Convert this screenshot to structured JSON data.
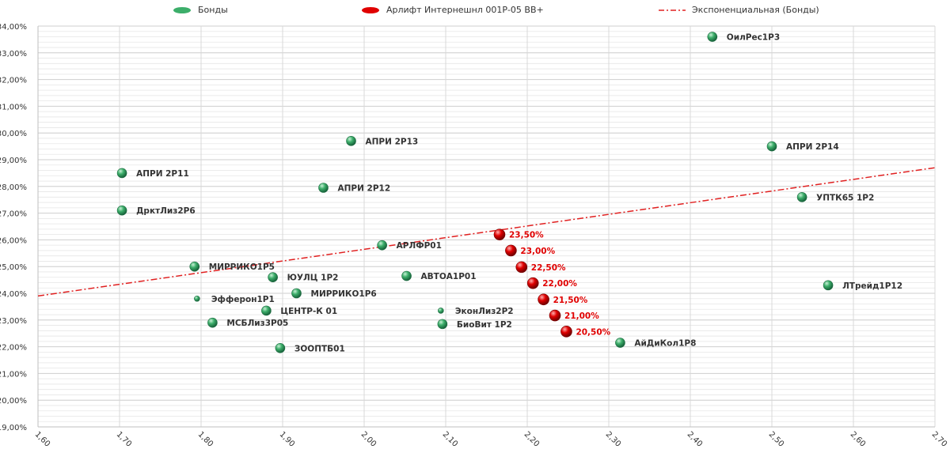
{
  "legend": {
    "bonds": "Бонды",
    "highlight": "Арлифт Интернешнл 001Р-05 BB+",
    "trend": "Экспоненциальная (Бонды)"
  },
  "colors": {
    "bond": "#3cae6a",
    "highlight": "#e00000",
    "trend": "#e02020",
    "label_highlight": "#e00000",
    "grid": "#d9d9d9",
    "text": "#333333"
  },
  "chart_data": {
    "type": "scatter",
    "xlim": [
      1.6,
      2.7
    ],
    "ylim": [
      19,
      34
    ],
    "x_ticks": [
      "1,60",
      "1,70",
      "1,80",
      "1,90",
      "2,00",
      "2,10",
      "2,20",
      "2,30",
      "2,40",
      "2,50",
      "2,60",
      "2,70"
    ],
    "y_ticks": [
      "19,00%",
      "20,00%",
      "21,00%",
      "22,00%",
      "23,00%",
      "24,00%",
      "25,00%",
      "26,00%",
      "27,00%",
      "28,00%",
      "29,00%",
      "30,00%",
      "31,00%",
      "32,00%",
      "33,00%",
      "34,00%"
    ],
    "minor_grid_step": 0.2,
    "legend_position": "top",
    "series": [
      {
        "name": "Бонды",
        "points": [
          {
            "x": 2.427,
            "y": 33.6,
            "label": "ОилРес1Р3"
          },
          {
            "x": 1.984,
            "y": 29.7,
            "label": "АПРИ 2Р13"
          },
          {
            "x": 2.5,
            "y": 29.5,
            "label": "АПРИ 2Р14"
          },
          {
            "x": 1.703,
            "y": 28.5,
            "label": "АПРИ 2Р11"
          },
          {
            "x": 1.95,
            "y": 27.95,
            "label": "АПРИ 2Р12"
          },
          {
            "x": 2.537,
            "y": 27.6,
            "label": "УПТК65 1Р2"
          },
          {
            "x": 1.703,
            "y": 27.1,
            "label": "ДрктЛиз2Р6"
          },
          {
            "x": 2.022,
            "y": 25.8,
            "label": "АРЛФР01"
          },
          {
            "x": 1.792,
            "y": 25.0,
            "label": "МИРРИКО1Р5"
          },
          {
            "x": 1.888,
            "y": 24.6,
            "label": "ЮУЛЦ 1Р2"
          },
          {
            "x": 2.052,
            "y": 24.65,
            "label": "АВТОА1Р01"
          },
          {
            "x": 2.569,
            "y": 24.3,
            "label": "ЛТрейд1Р12"
          },
          {
            "x": 1.917,
            "y": 24.0,
            "label": "МИРРИКО1Р6"
          },
          {
            "x": 1.795,
            "y": 23.8,
            "label": "Эфферон1Р1",
            "small": true
          },
          {
            "x": 1.88,
            "y": 23.35,
            "label": "ЦЕНТР-К 01"
          },
          {
            "x": 2.094,
            "y": 23.35,
            "label": "ЭконЛиз2Р2",
            "small": true
          },
          {
            "x": 1.814,
            "y": 22.9,
            "label": "МСБЛиз3Р05"
          },
          {
            "x": 2.096,
            "y": 22.85,
            "label": "БиоВит 1Р2"
          },
          {
            "x": 2.314,
            "y": 22.15,
            "label": "АйДиКол1Р8"
          },
          {
            "x": 1.897,
            "y": 21.95,
            "label": "ЗООПТБ01"
          }
        ]
      },
      {
        "name": "Арлифт Интернешнл 001Р-05 BB+",
        "points": [
          {
            "x": 2.166,
            "y": 26.2,
            "label": "23,50%"
          },
          {
            "x": 2.18,
            "y": 25.6,
            "label": "23,00%"
          },
          {
            "x": 2.193,
            "y": 24.98,
            "label": "22,50%"
          },
          {
            "x": 2.207,
            "y": 24.38,
            "label": "22,00%"
          },
          {
            "x": 2.22,
            "y": 23.77,
            "label": "21,50%"
          },
          {
            "x": 2.234,
            "y": 23.17,
            "label": "21,00%"
          },
          {
            "x": 2.248,
            "y": 22.57,
            "label": "20,50%"
          }
        ]
      }
    ],
    "trendline": {
      "name": "Экспоненциальная (Бонды)",
      "x": [
        1.6,
        2.7
      ],
      "y": [
        23.9,
        28.7
      ]
    }
  }
}
